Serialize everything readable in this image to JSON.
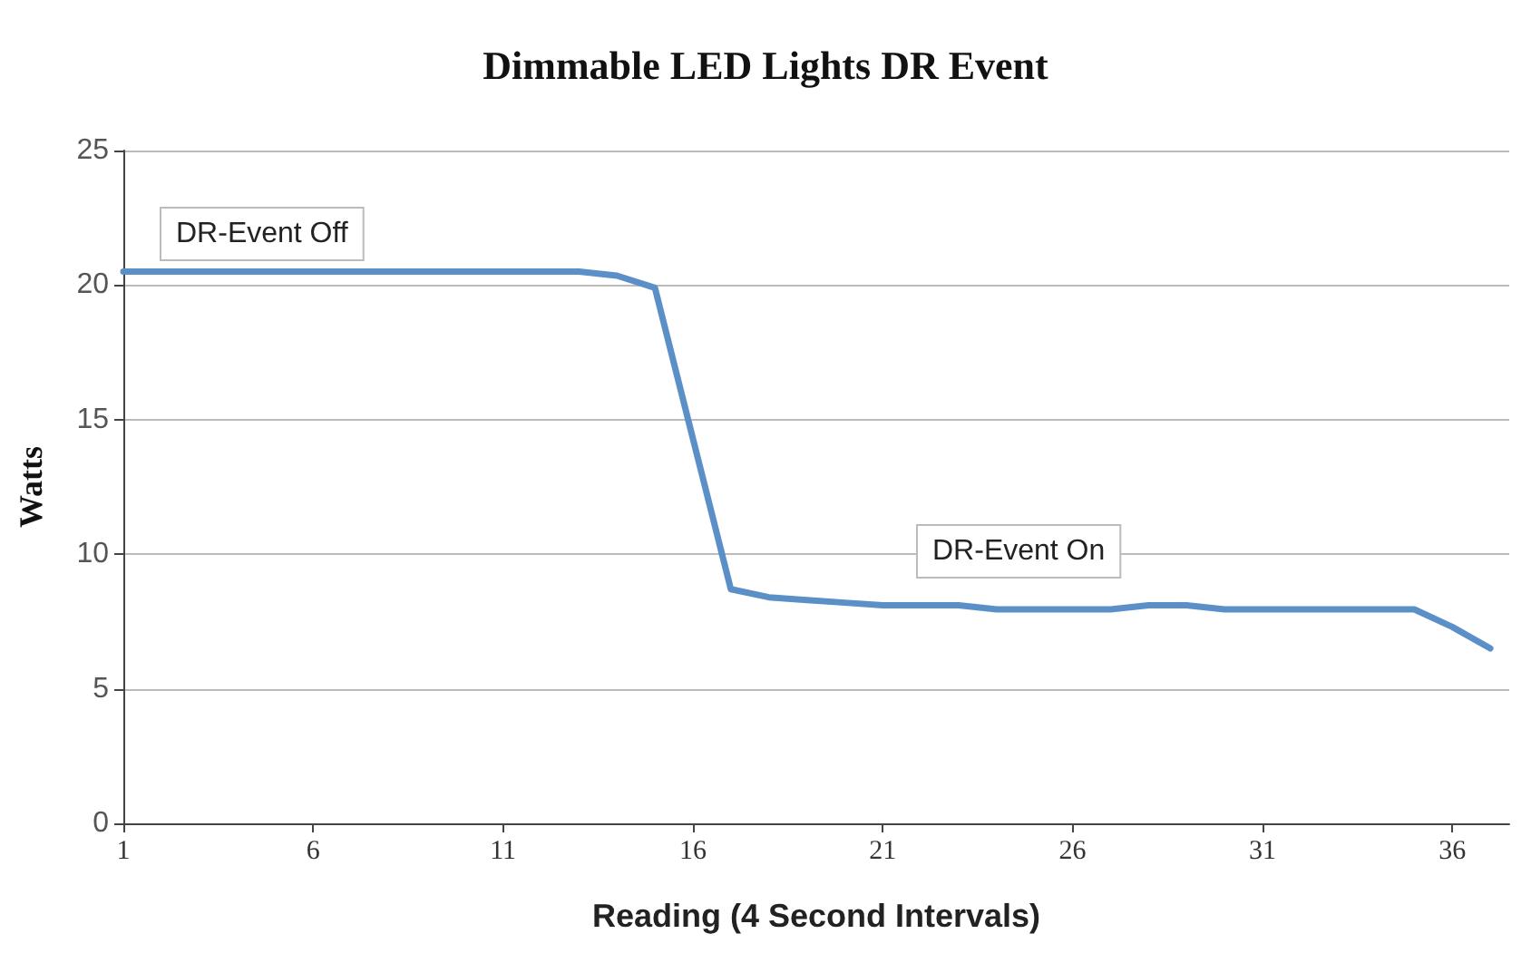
{
  "chart_data": {
    "type": "line",
    "title": "Dimmable LED Lights DR Event",
    "xlabel": "Reading (4 Second Intervals)",
    "ylabel": "Watts",
    "x": [
      1,
      2,
      3,
      4,
      5,
      6,
      7,
      8,
      9,
      10,
      11,
      12,
      13,
      14,
      15,
      16,
      17,
      18,
      19,
      20,
      21,
      22,
      23,
      24,
      25,
      26,
      27,
      28,
      29,
      30,
      31,
      32,
      33,
      34,
      35,
      36,
      37
    ],
    "series": [
      {
        "color": "#5b8fc7",
        "values": [
          20.5,
          20.5,
          20.5,
          20.5,
          20.5,
          20.5,
          20.5,
          20.5,
          20.5,
          20.5,
          20.5,
          20.5,
          20.5,
          20.35,
          19.9,
          14.3,
          8.7,
          8.4,
          8.3,
          8.2,
          8.1,
          8.1,
          8.1,
          7.95,
          7.95,
          7.95,
          7.95,
          8.1,
          8.1,
          7.95,
          7.95,
          7.95,
          7.95,
          7.95,
          7.95,
          7.3,
          6.5
        ]
      }
    ],
    "xlim": [
      1,
      37.5
    ],
    "xticks": [
      1,
      6,
      11,
      16,
      21,
      26,
      31,
      36
    ],
    "ylim": [
      0,
      25
    ],
    "yticks": [
      0,
      5,
      10,
      15,
      20,
      25
    ],
    "annotations": [
      "DR-Event Off",
      "DR-Event On"
    ],
    "grid": "y",
    "marker": "none",
    "line_style": "solid"
  }
}
